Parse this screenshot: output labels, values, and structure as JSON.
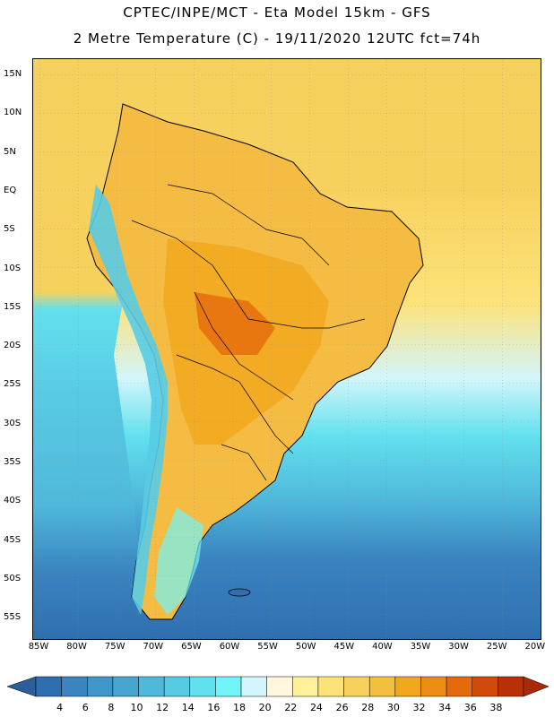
{
  "header": {
    "line1": "CPTEC/INPE/MCT -  Eta Model 15km - GFS",
    "line2": "2 Metre Temperature (C) - 19/11/2020 12UTC fct=74h"
  },
  "axes": {
    "lat_labels": [
      "15N",
      "10N",
      "5N",
      "EQ",
      "5S",
      "10S",
      "15S",
      "20S",
      "25S",
      "30S",
      "35S",
      "40S",
      "45S",
      "50S",
      "55S"
    ],
    "lon_labels": [
      "85W",
      "80W",
      "75W",
      "70W",
      "65W",
      "60W",
      "55W",
      "50W",
      "45W",
      "40W",
      "35W",
      "30W",
      "25W",
      "20W"
    ]
  },
  "legend": {
    "labels": [
      "4",
      "6",
      "8",
      "10",
      "12",
      "14",
      "16",
      "18",
      "20",
      "22",
      "24",
      "26",
      "28",
      "30",
      "32",
      "34",
      "36",
      "38"
    ],
    "colors": [
      "#2f6fb0",
      "#3a84c0",
      "#3f96c9",
      "#46a6d1",
      "#4fb8db",
      "#58cbe4",
      "#62e0ee",
      "#70f4f8",
      "#d2f6fb",
      "#fff8de",
      "#fff199",
      "#fde27a",
      "#f7d15d",
      "#f2bf3e",
      "#f1a81c",
      "#ec8c14",
      "#e56a0c",
      "#d04a0a",
      "#b83006"
    ],
    "left_arrow_color": "#2a5f9a",
    "right_arrow_color": "#a82a08"
  },
  "colors": {
    "ocean_deep": "#2f6fb0",
    "land_hot": "#f0a62a",
    "land_warm": "#f4bc43",
    "tropical_ocean": "#f7d15d",
    "subtropical_ocean": "#4fb8db"
  }
}
